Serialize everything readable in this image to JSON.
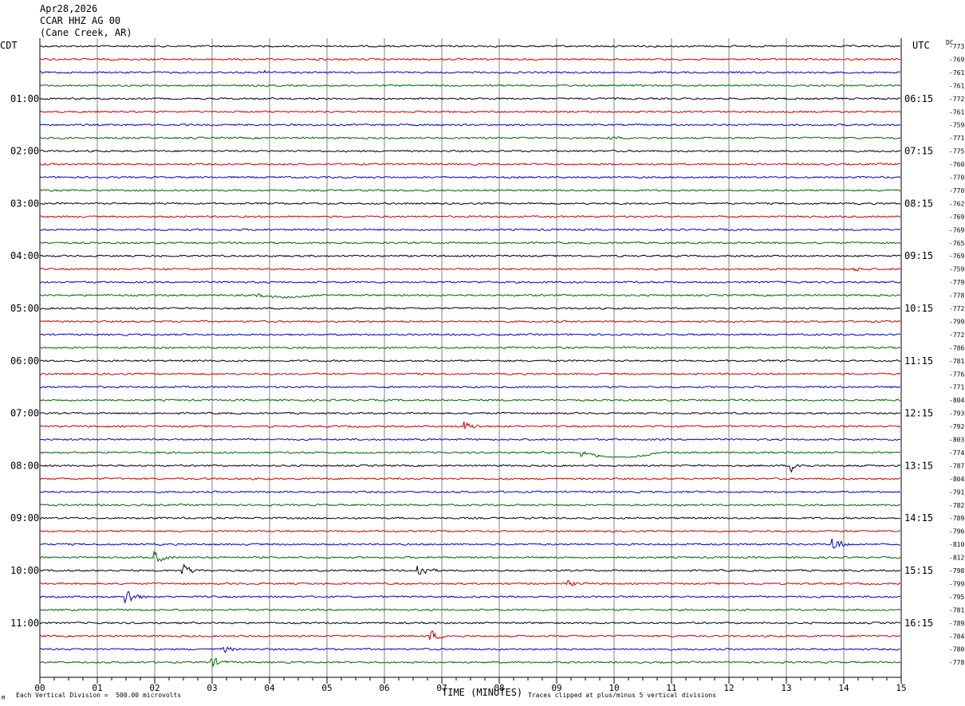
{
  "header": {
    "date": "Apr28,2026",
    "station": "CCAR HHZ AG 00",
    "location": "(Cane Creek, AR)"
  },
  "left_timezone": "CDT",
  "right_timezone": "UTC",
  "dc_label": "DC",
  "footer": {
    "scale": "Each Vertical Division =  500.00 microvolts",
    "xlabel": "TIME (MINUTES)",
    "clip": "Traces clipped at plus/minus 5 vertical divisions",
    "corner_mark": "M"
  },
  "colors": {
    "trace_cycle": [
      "#000000",
      "#cc0000",
      "#0000cc",
      "#006600"
    ],
    "grid": "#808080"
  },
  "chart_data": {
    "type": "line",
    "title": "CCAR HHZ AG 00",
    "xlabel": "TIME (MINUTES)",
    "xlim": [
      0,
      15
    ],
    "x_ticks": [
      "00",
      "01",
      "02",
      "03",
      "04",
      "05",
      "06",
      "07",
      "08",
      "09",
      "10",
      "11",
      "12",
      "13",
      "14",
      "15"
    ],
    "left_hour_labels": [
      "01:00",
      "02:00",
      "03:00",
      "04:00",
      "05:00",
      "06:00",
      "07:00",
      "08:00",
      "09:00",
      "10:00",
      "11:00"
    ],
    "right_hour_labels": [
      "06:15",
      "07:15",
      "08:15",
      "09:15",
      "10:15",
      "11:15",
      "12:15",
      "13:15",
      "14:15",
      "15:15",
      "16:15"
    ],
    "dc_offsets": [
      "-773",
      "-769",
      "-761",
      "-761",
      "-772",
      "-761",
      "-759",
      "-771",
      "-775",
      "-760",
      "-770",
      "-770",
      "-762",
      "-769",
      "-769",
      "-765",
      "-769",
      "-759",
      "-779",
      "-778",
      "-772",
      "-799",
      "-772",
      "-786",
      "-781",
      "-776",
      "-771",
      "-804",
      "-793",
      "-792",
      "-803",
      "-774",
      "-787",
      "-804",
      "-791",
      "-782",
      "-789",
      "-796",
      "-810",
      "-812",
      "-798",
      "-799",
      "-795",
      "-781",
      "-789",
      "-784",
      "-780",
      "-778"
    ],
    "events": [
      {
        "row": 1,
        "minute": 4.8,
        "amp": 0.35
      },
      {
        "row": 2,
        "minute": 3.9,
        "amp": 0.5
      },
      {
        "row": 7,
        "minute": 9.9,
        "amp": 0.35
      },
      {
        "row": 17,
        "minute": 14.2,
        "amp": 0.6
      },
      {
        "row": 19,
        "minute": 3.8,
        "amp": 0.3,
        "drift": true,
        "drift_len": 1.0,
        "drift_depth": 2.5
      },
      {
        "row": 29,
        "minute": 7.4,
        "amp": 1.5
      },
      {
        "row": 31,
        "minute": 9.4,
        "amp": 1.2,
        "drift": true,
        "drift_len": 1.4,
        "drift_depth": 6
      },
      {
        "row": 32,
        "minute": 13.1,
        "amp": 1.6
      },
      {
        "row": 38,
        "minute": 13.8,
        "amp": 2.6
      },
      {
        "row": 39,
        "minute": 2.0,
        "amp": 2.0
      },
      {
        "row": 40,
        "minute": 2.5,
        "amp": 1.8
      },
      {
        "row": 40,
        "minute": 6.6,
        "amp": 2.2
      },
      {
        "row": 41,
        "minute": 9.2,
        "amp": 0.8
      },
      {
        "row": 42,
        "minute": 1.5,
        "amp": 3.0
      },
      {
        "row": 45,
        "minute": 6.8,
        "amp": 1.8
      },
      {
        "row": 46,
        "minute": 3.2,
        "amp": 0.9
      },
      {
        "row": 47,
        "minute": 3.0,
        "amp": 1.5
      }
    ]
  }
}
